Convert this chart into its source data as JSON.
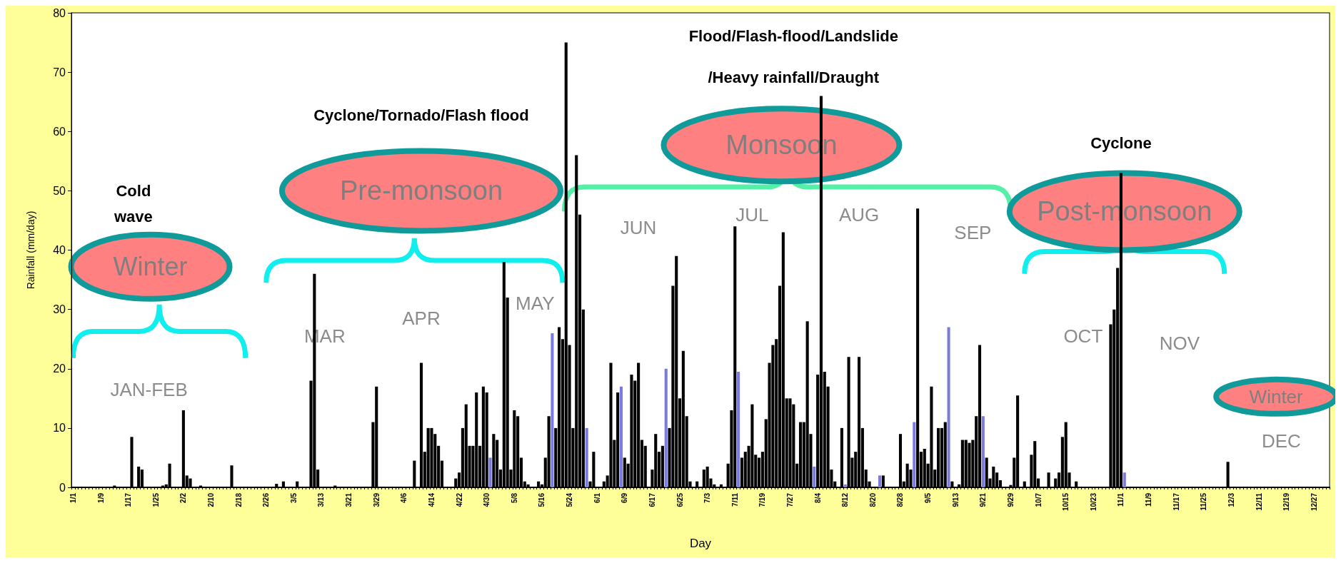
{
  "chart_data": {
    "type": "bar",
    "stacked": true,
    "xlabel": "Day",
    "ylabel": "Rainfall (mm/day)",
    "ylim": [
      0,
      80
    ],
    "yticks": [
      0,
      10,
      20,
      30,
      40,
      50,
      60,
      70,
      80
    ],
    "categories": [
      "1/1",
      null,
      null,
      null,
      null,
      null,
      null,
      null,
      "1/9",
      null,
      null,
      null,
      null,
      null,
      null,
      null,
      "1/17",
      null,
      null,
      null,
      null,
      null,
      null,
      null,
      "1/25",
      null,
      null,
      null,
      null,
      null,
      null,
      null,
      "2/2",
      null,
      null,
      null,
      null,
      null,
      null,
      null,
      "2/10",
      null,
      null,
      null,
      null,
      null,
      null,
      null,
      "2/18",
      null,
      null,
      null,
      null,
      null,
      null,
      null,
      "2/26",
      null,
      null,
      null,
      null,
      null,
      null,
      null,
      "3/5",
      null,
      null,
      null,
      null,
      null,
      null,
      null,
      "3/13",
      null,
      null,
      null,
      null,
      null,
      null,
      null,
      "3/21",
      null,
      null,
      null,
      null,
      null,
      null,
      null,
      "3/29",
      null,
      null,
      null,
      null,
      null,
      null,
      null,
      "4/6",
      null,
      null,
      null,
      null,
      null,
      null,
      null,
      "4/14",
      null,
      null,
      null,
      null,
      null,
      null,
      null,
      "4/22",
      null,
      null,
      null,
      null,
      null,
      null,
      null,
      "4/30",
      null,
      null,
      null,
      null,
      null,
      null,
      null,
      "5/8",
      null,
      null,
      null,
      null,
      null,
      null,
      null,
      "5/16",
      null,
      null,
      null,
      null,
      null,
      null,
      null,
      "5/24",
      null,
      null,
      null,
      null,
      null,
      null,
      null,
      "6/1",
      null,
      null,
      null,
      null,
      null,
      null,
      null,
      "6/9",
      null,
      null,
      null,
      null,
      null,
      null,
      null,
      "6/17",
      null,
      null,
      null,
      null,
      null,
      null,
      null,
      "6/25",
      null,
      null,
      null,
      null,
      null,
      null,
      null,
      "7/3",
      null,
      null,
      null,
      null,
      null,
      null,
      null,
      "7/11",
      null,
      null,
      null,
      null,
      null,
      null,
      null,
      "7/19",
      null,
      null,
      null,
      null,
      null,
      null,
      null,
      "7/27",
      null,
      null,
      null,
      null,
      null,
      null,
      null,
      "8/4",
      null,
      null,
      null,
      null,
      null,
      null,
      null,
      "8/12",
      null,
      null,
      null,
      null,
      null,
      null,
      null,
      "8/20",
      null,
      null,
      null,
      null,
      null,
      null,
      null,
      "8/28",
      null,
      null,
      null,
      null,
      null,
      null,
      null,
      "9/5",
      null,
      null,
      null,
      null,
      null,
      null,
      null,
      "9/13",
      null,
      null,
      null,
      null,
      null,
      null,
      null,
      "9/21",
      null,
      null,
      null,
      null,
      null,
      null,
      null,
      "9/29",
      null,
      null,
      null,
      null,
      null,
      null,
      null,
      "10/7",
      null,
      null,
      null,
      null,
      null,
      null,
      null,
      "10/15",
      null,
      null,
      null,
      null,
      null,
      null,
      null,
      "10/23",
      null,
      null,
      null,
      null,
      null,
      null,
      null,
      "11/1",
      null,
      null,
      null,
      null,
      null,
      null,
      null,
      "11/9",
      null,
      null,
      null,
      null,
      null,
      null,
      null,
      "11/17",
      null,
      null,
      null,
      null,
      null,
      null,
      null,
      "11/25",
      null,
      null,
      null,
      null,
      null,
      null,
      null,
      "12/3",
      null,
      null,
      null,
      null,
      null,
      null,
      null,
      "12/11",
      null,
      null,
      null,
      null,
      null,
      null,
      null,
      "12/19",
      null,
      null,
      null,
      null,
      null,
      null,
      null,
      "12/27",
      null,
      null,
      null,
      null
    ],
    "series": [
      {
        "color": "#000000",
        "values": [
          0,
          0,
          0,
          0,
          0,
          0,
          0,
          0,
          0,
          0,
          0,
          0,
          0.3,
          0,
          0,
          0,
          0,
          8.5,
          0,
          3.5,
          3,
          0,
          0,
          0,
          0,
          0,
          0.3,
          0.5,
          4,
          0,
          0,
          0,
          13,
          2,
          1.5,
          0,
          0,
          0.3,
          0,
          0,
          0,
          0,
          0,
          0,
          0,
          0,
          3.7,
          0,
          0,
          0,
          0,
          0,
          0,
          0,
          0,
          0,
          0,
          0,
          0,
          0.6,
          0,
          1,
          0,
          0,
          0,
          1,
          0,
          0,
          0,
          18,
          36,
          3,
          0,
          0,
          0,
          0,
          0.3,
          0,
          0,
          0,
          0,
          0,
          0,
          0,
          0,
          0,
          0,
          11,
          17,
          0,
          0,
          0,
          0,
          0,
          0,
          0,
          0,
          0,
          0,
          4.5,
          0,
          21,
          6,
          10,
          10,
          9,
          7,
          4.5,
          0,
          0,
          0,
          1.5,
          2.5,
          10,
          14,
          7,
          7,
          16,
          7,
          17,
          16,
          null,
          9,
          8,
          3,
          38,
          32,
          3,
          13,
          12,
          5,
          1,
          0.5,
          0,
          0,
          1,
          0.5,
          5,
          12,
          null,
          10,
          27,
          25,
          75,
          24,
          10,
          56,
          46,
          30,
          null,
          1,
          6,
          0,
          0,
          1,
          2,
          21,
          8,
          16,
          null,
          5,
          4,
          19,
          18,
          21,
          8,
          7,
          0,
          3,
          9,
          6,
          7,
          null,
          10,
          34,
          39,
          15,
          23,
          12,
          1,
          0,
          1,
          0,
          3,
          3.5,
          1.5,
          0.5,
          0,
          0.5,
          0,
          4,
          13,
          44,
          null,
          5,
          6,
          7,
          14,
          5.5,
          5,
          6,
          11.5,
          21,
          24,
          25,
          34,
          43,
          15,
          15,
          14,
          4,
          11,
          11,
          28,
          9,
          null,
          19,
          66,
          19.5,
          17,
          3,
          1,
          0,
          10,
          null,
          22,
          5,
          6,
          22,
          10,
          3,
          1,
          0,
          0,
          null,
          2,
          0,
          0,
          0,
          0,
          9,
          1,
          4,
          3,
          null,
          47,
          6,
          6.5,
          4,
          17,
          3,
          10,
          10,
          11,
          null,
          1,
          0,
          0.5,
          8,
          8,
          7.5,
          8,
          12,
          24,
          null,
          5,
          1.5,
          3.5,
          2.5,
          1.2,
          0,
          0,
          0.4,
          5,
          15.5,
          0,
          1,
          0,
          5.5,
          7.8,
          1.5,
          0,
          0,
          2.5,
          0,
          1.5,
          2.5,
          8.5,
          11,
          2.5,
          0,
          1,
          0,
          0,
          0,
          0,
          0,
          0,
          0,
          0,
          0,
          27.5,
          30,
          37,
          53,
          0,
          null,
          0,
          0,
          0,
          0,
          0,
          0,
          0,
          0,
          0,
          0,
          0,
          0,
          0,
          0,
          0,
          0,
          0,
          0,
          0,
          0,
          0,
          0,
          0,
          0,
          0,
          0,
          0,
          0,
          4.3,
          0,
          0,
          0,
          0,
          0,
          0,
          0,
          0,
          0,
          0,
          0,
          0,
          0,
          0,
          0,
          0,
          0,
          0,
          0,
          0,
          0,
          0,
          0,
          0,
          0,
          0,
          0,
          0,
          0
        ]
      },
      {
        "color": "#7b7bdf",
        "values": [
          null,
          null,
          null,
          null,
          null,
          null,
          null,
          null,
          null,
          null,
          null,
          null,
          null,
          null,
          null,
          null,
          null,
          null,
          null,
          null,
          null,
          null,
          null,
          null,
          null,
          null,
          null,
          null,
          null,
          null,
          null,
          null,
          null,
          null,
          null,
          null,
          null,
          null,
          null,
          null,
          null,
          null,
          null,
          null,
          null,
          null,
          null,
          null,
          null,
          null,
          null,
          null,
          null,
          null,
          null,
          null,
          null,
          null,
          null,
          null,
          null,
          null,
          null,
          null,
          null,
          null,
          null,
          null,
          null,
          null,
          null,
          null,
          null,
          null,
          null,
          null,
          null,
          null,
          null,
          null,
          null,
          null,
          null,
          null,
          null,
          null,
          null,
          null,
          null,
          null,
          null,
          null,
          null,
          null,
          null,
          null,
          null,
          null,
          null,
          null,
          null,
          null,
          null,
          null,
          null,
          null,
          null,
          null,
          null,
          null,
          null,
          null,
          null,
          null,
          null,
          null,
          null,
          null,
          null,
          null,
          null,
          5,
          null,
          null,
          null,
          null,
          null,
          null,
          null,
          null,
          null,
          null,
          null,
          null,
          null,
          null,
          null,
          null,
          null,
          26,
          null,
          null,
          null,
          null,
          null,
          null,
          null,
          null,
          null,
          10,
          null,
          null,
          null,
          null,
          null,
          null,
          null,
          null,
          null,
          17,
          null,
          null,
          null,
          null,
          null,
          null,
          null,
          null,
          null,
          null,
          null,
          null,
          20,
          null,
          null,
          null,
          null,
          null,
          null,
          null,
          null,
          null,
          null,
          null,
          null,
          null,
          null,
          null,
          null,
          null,
          null,
          null,
          null,
          19.5,
          null,
          null,
          null,
          null,
          null,
          null,
          null,
          null,
          null,
          null,
          null,
          null,
          null,
          null,
          null,
          null,
          null,
          null,
          null,
          null,
          null,
          3.5,
          null,
          null,
          null,
          null,
          null,
          null,
          null,
          null,
          0.5,
          null,
          null,
          null,
          null,
          null,
          null,
          null,
          null,
          null,
          2,
          null,
          null,
          null,
          null,
          null,
          null,
          null,
          null,
          null,
          11,
          null,
          null,
          null,
          null,
          null,
          null,
          null,
          null,
          null,
          27,
          null,
          null,
          null,
          null,
          null,
          null,
          null,
          null,
          null,
          12,
          null,
          null,
          null,
          null,
          null,
          null,
          null,
          null,
          null,
          null,
          null,
          null,
          null,
          null,
          null,
          null,
          null,
          null,
          null,
          null,
          null,
          null,
          null,
          null,
          null,
          null,
          null,
          null,
          null,
          null,
          null,
          null,
          null,
          null,
          null,
          null,
          null,
          null,
          null,
          null,
          2.5,
          null,
          null,
          null,
          null,
          null,
          null,
          null,
          null,
          null,
          null,
          null,
          null,
          null,
          null,
          null,
          null,
          null,
          null,
          null,
          null,
          null,
          null,
          null,
          null,
          null,
          null,
          null,
          null,
          null,
          null,
          null,
          null,
          null,
          null,
          null,
          null,
          null,
          null,
          null,
          null,
          null,
          null,
          null,
          null,
          null,
          null,
          null,
          null,
          null,
          null,
          null,
          null,
          null,
          null,
          null,
          null,
          null,
          null,
          null
        ]
      }
    ],
    "annotations": [
      "Cold wave",
      "Winter",
      "JAN-FEB",
      "Cyclone/Tornado/Flash flood",
      "Pre-monsoon",
      "MAR",
      "APR",
      "MAY",
      "Flood/Flash-flood/Landslide",
      "/Heavy rainfall/Draught",
      "Monsoon",
      "JUN",
      "JUL",
      "AUG",
      "SEP",
      "Cyclone",
      "Post-monsoon",
      "OCT",
      "NOV",
      "Winter",
      "DEC"
    ]
  }
}
